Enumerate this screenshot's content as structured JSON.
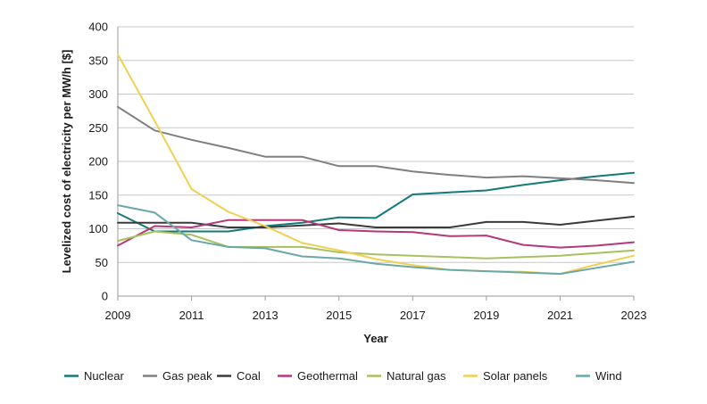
{
  "chart_data": {
    "type": "line",
    "title": "",
    "xlabel": "Year",
    "ylabel": "Levelized cost of electricity per MW/h [$]",
    "xlim": [
      2009,
      2023
    ],
    "ylim": [
      0,
      400
    ],
    "grid": true,
    "legend_position": "bottom",
    "x_ticks": [
      "2009",
      "2011",
      "2013",
      "2015",
      "2017",
      "2019",
      "2021",
      "2023"
    ],
    "y_ticks": [
      "0",
      "50",
      "100",
      "150",
      "200",
      "250",
      "300",
      "350",
      "400"
    ],
    "x": [
      2009,
      2010,
      2011,
      2012,
      2013,
      2014,
      2015,
      2016,
      2017,
      2018,
      2019,
      2020,
      2021,
      2022,
      2023
    ],
    "series": [
      {
        "name": "Nuclear",
        "color": "#127a7a",
        "values": [
          123,
          96,
          96,
          96,
          104,
          109,
          117,
          116,
          151,
          154,
          157,
          165,
          172,
          178,
          183
        ]
      },
      {
        "name": "Gas peak",
        "color": "#7f7f7f",
        "values": [
          281,
          246,
          232,
          220,
          207,
          207,
          193,
          193,
          185,
          180,
          176,
          178,
          175,
          172,
          168
        ]
      },
      {
        "name": "Coal",
        "color": "#3a3a3a",
        "values": [
          109,
          109,
          109,
          102,
          102,
          105,
          108,
          102,
          102,
          102,
          110,
          110,
          106,
          112,
          118
        ]
      },
      {
        "name": "Geothermal",
        "color": "#b5387a",
        "values": [
          75,
          104,
          102,
          113,
          113,
          113,
          98,
          96,
          95,
          89,
          90,
          76,
          72,
          75,
          80
        ]
      },
      {
        "name": "Natural gas",
        "color": "#a8c060",
        "values": [
          82,
          96,
          91,
          73,
          73,
          73,
          65,
          62,
          60,
          58,
          56,
          58,
          60,
          64,
          68
        ]
      },
      {
        "name": "Solar panels",
        "color": "#f0d050",
        "values": [
          359,
          260,
          159,
          125,
          104,
          79,
          68,
          55,
          46,
          39,
          37,
          36,
          33,
          47,
          60
        ]
      },
      {
        "name": "Wind",
        "color": "#6aa8a8",
        "values": [
          135,
          124,
          83,
          73,
          71,
          59,
          56,
          48,
          43,
          39,
          37,
          35,
          33,
          42,
          51
        ]
      }
    ]
  }
}
